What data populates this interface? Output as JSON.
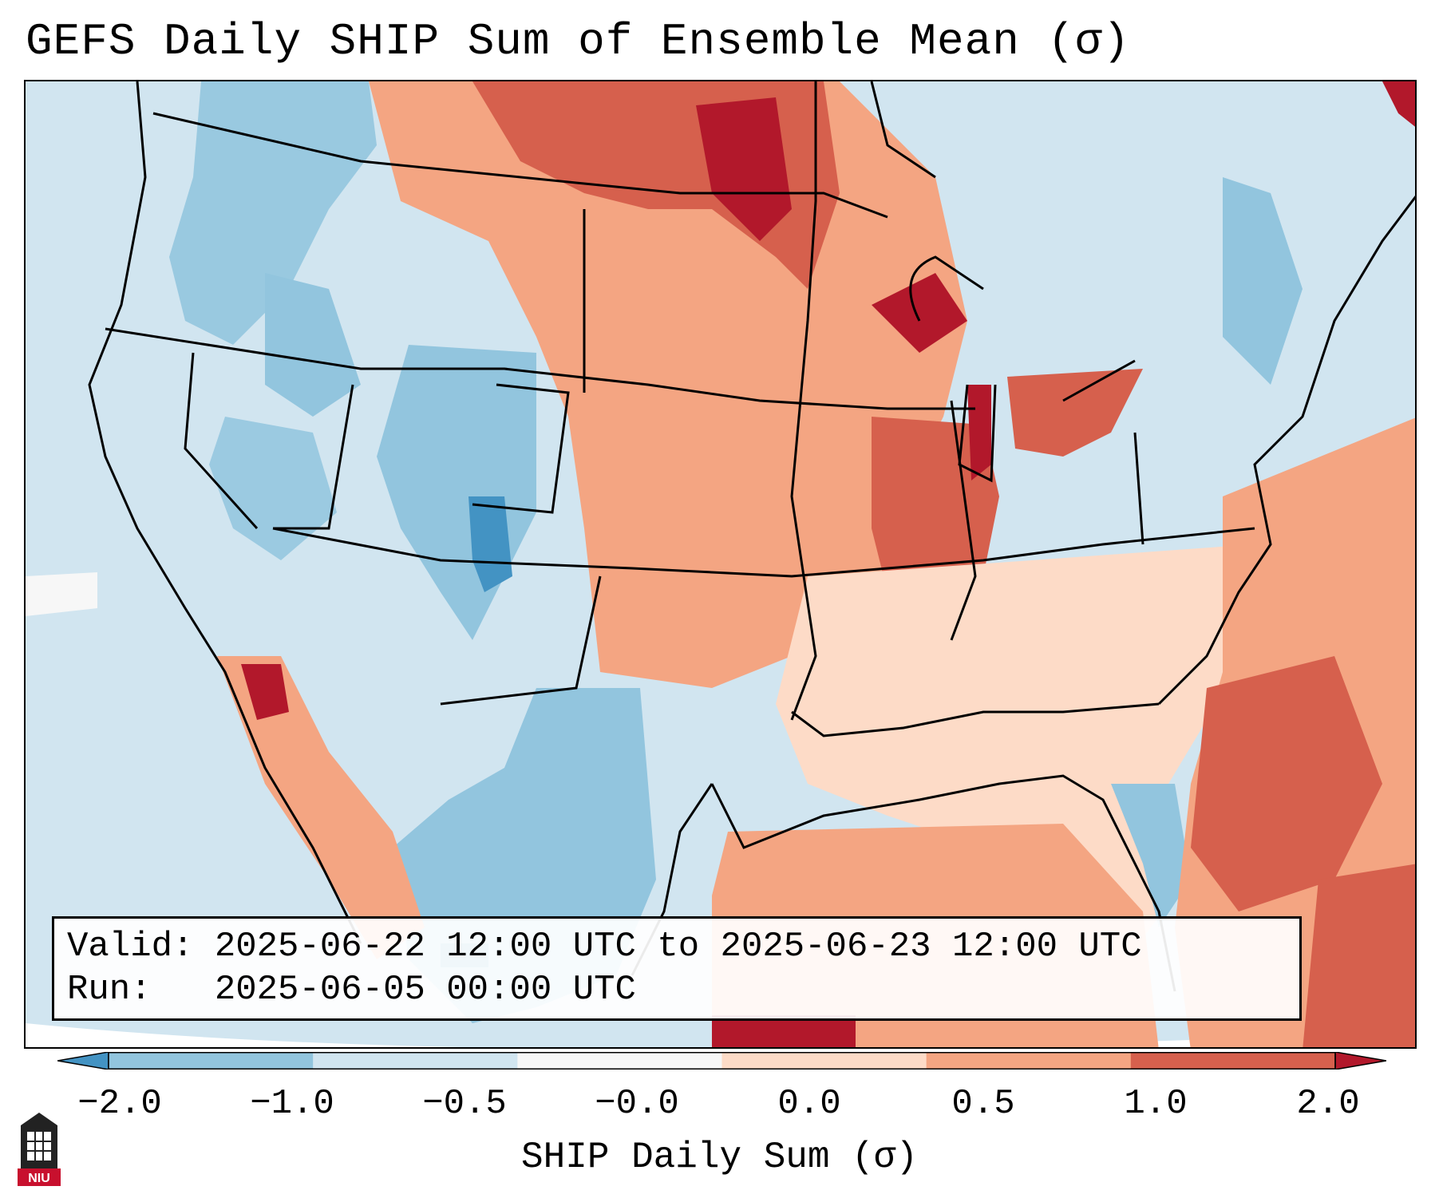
{
  "title": "GEFS Daily SHIP Sum of Ensemble Mean (σ)",
  "info": {
    "valid_line": "Valid: 2025-06-22 12:00 UTC to 2025-06-23 12:00 UTC",
    "run_line": "Run:   2025-06-05 00:00 UTC"
  },
  "colorbar": {
    "label": "SHIP Daily Sum (σ)",
    "ticks": [
      "−2.0",
      "−1.0",
      "−0.5",
      "−0.0",
      "0.0",
      "0.5",
      "1.0",
      "2.0"
    ],
    "colors": [
      "#4393c3",
      "#92c5de",
      "#d1e5f0",
      "#f7f7f7",
      "#fddbc7",
      "#f4a582",
      "#d6604d",
      "#b2182b"
    ]
  },
  "logo": {
    "text": "NIU"
  }
}
